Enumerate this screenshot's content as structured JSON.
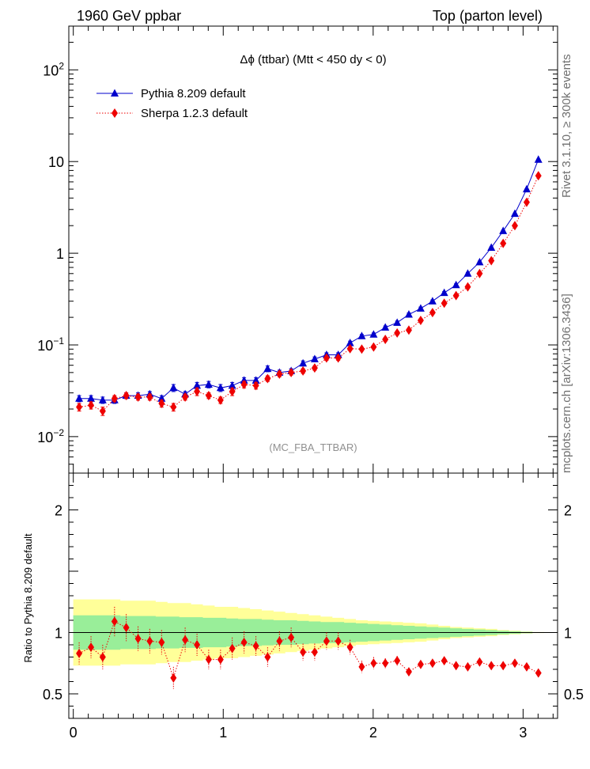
{
  "header": {
    "left": "1960 GeV ppbar",
    "right": "Top (parton level)"
  },
  "side_labels": {
    "rivet": "Rivet 3.1.10, ≥ 300k events",
    "mcplots": "mcplots.cern.ch [arXiv:1306.3436]"
  },
  "chart_data": [
    {
      "type": "scatter",
      "panel": "main",
      "title": "Δϕ (ttbar) (Mtt < 450 dy < 0)",
      "watermark": "(MC_FBA_TTBAR)",
      "yscale": "log",
      "xlim": [
        -0.03,
        3.23
      ],
      "ylim": [
        0.004,
        300
      ],
      "ytick_values": [
        0.01,
        0.1,
        1,
        10,
        100
      ],
      "ytick_labels": [
        "10^-2",
        "10^-1",
        "1",
        "10",
        "10^2"
      ],
      "legend_position": "top-left",
      "x": [
        0.039,
        0.118,
        0.196,
        0.275,
        0.353,
        0.432,
        0.51,
        0.589,
        0.668,
        0.746,
        0.825,
        0.903,
        0.982,
        1.06,
        1.139,
        1.218,
        1.296,
        1.375,
        1.453,
        1.532,
        1.61,
        1.689,
        1.767,
        1.846,
        1.924,
        2.003,
        2.081,
        2.16,
        2.238,
        2.317,
        2.396,
        2.474,
        2.553,
        2.631,
        2.71,
        2.788,
        2.867,
        2.945,
        3.024,
        3.102
      ],
      "series": [
        {
          "name": "Pythia 8.209 default",
          "color": "#0000cc",
          "marker": "triangle",
          "line": "solid",
          "values": [
            0.026,
            0.026,
            0.025,
            0.025,
            0.028,
            0.028,
            0.029,
            0.026,
            0.034,
            0.029,
            0.036,
            0.037,
            0.034,
            0.036,
            0.041,
            0.041,
            0.055,
            0.05,
            0.052,
            0.063,
            0.07,
            0.078,
            0.078,
            0.105,
            0.125,
            0.13,
            0.155,
            0.175,
            0.215,
            0.25,
            0.3,
            0.37,
            0.45,
            0.6,
            0.8,
            1.15,
            1.75,
            2.7,
            5.0,
            10.5
          ],
          "errors": [
            0.002,
            0.002,
            0.002,
            0.002,
            0.002,
            0.002,
            0.002,
            0.002,
            0.003,
            0.002,
            0.003,
            0.003,
            0.003,
            0.003,
            0.003,
            0.003,
            0.004,
            0.003,
            0.003,
            0.004,
            0.004,
            0.004,
            0.004,
            0.005,
            0.005,
            0.005,
            0.006,
            0.007,
            0.008,
            0.009,
            0.01,
            0.012,
            0.014,
            0.018,
            0.02,
            0.025,
            0.03,
            0.04,
            0.06,
            0.1
          ]
        },
        {
          "name": "Sherpa 1.2.3 default",
          "color": "#ee0000",
          "marker": "diamond",
          "line": "dotted",
          "values": [
            0.021,
            0.022,
            0.019,
            0.026,
            0.028,
            0.027,
            0.027,
            0.023,
            0.021,
            0.027,
            0.031,
            0.028,
            0.025,
            0.031,
            0.037,
            0.036,
            0.043,
            0.048,
            0.05,
            0.052,
            0.056,
            0.072,
            0.072,
            0.091,
            0.09,
            0.095,
            0.115,
            0.135,
            0.145,
            0.185,
            0.225,
            0.285,
            0.345,
            0.43,
            0.6,
            0.83,
            1.28,
            2.0,
            3.6,
            7.0
          ],
          "errors": [
            0.002,
            0.002,
            0.002,
            0.002,
            0.002,
            0.002,
            0.002,
            0.002,
            0.002,
            0.002,
            0.003,
            0.002,
            0.002,
            0.003,
            0.003,
            0.003,
            0.003,
            0.003,
            0.003,
            0.003,
            0.003,
            0.004,
            0.004,
            0.004,
            0.004,
            0.004,
            0.005,
            0.006,
            0.006,
            0.007,
            0.008,
            0.01,
            0.012,
            0.014,
            0.018,
            0.022,
            0.028,
            0.035,
            0.05,
            0.08
          ]
        }
      ]
    },
    {
      "type": "scatter",
      "panel": "ratio",
      "ylabel": "Ratio to Pythia 8.209 default",
      "xlim": [
        -0.03,
        3.23
      ],
      "ylim": [
        0.3,
        2.3
      ],
      "xtick_labels": [
        "0",
        "1",
        "2",
        "3"
      ],
      "ytick_labels": [
        "0.5",
        "1",
        "2"
      ],
      "reference_line": 1,
      "band_inner_halfwidth": [
        0.14,
        0.14,
        0.14,
        0.14,
        0.135,
        0.135,
        0.135,
        0.13,
        0.13,
        0.125,
        0.125,
        0.12,
        0.12,
        0.115,
        0.11,
        0.11,
        0.105,
        0.1,
        0.1,
        0.095,
        0.09,
        0.085,
        0.085,
        0.08,
        0.075,
        0.07,
        0.065,
        0.06,
        0.055,
        0.05,
        0.045,
        0.04,
        0.035,
        0.03,
        0.025,
        0.02,
        0.015,
        0.01,
        0.006,
        0.003
      ],
      "band_outer_halfwidth": [
        0.27,
        0.27,
        0.27,
        0.27,
        0.26,
        0.26,
        0.26,
        0.25,
        0.24,
        0.24,
        0.23,
        0.22,
        0.21,
        0.21,
        0.2,
        0.19,
        0.18,
        0.17,
        0.16,
        0.15,
        0.14,
        0.13,
        0.12,
        0.11,
        0.1,
        0.095,
        0.09,
        0.085,
        0.08,
        0.075,
        0.065,
        0.055,
        0.045,
        0.04,
        0.035,
        0.03,
        0.02,
        0.015,
        0.008,
        0.004
      ],
      "series": [
        {
          "name": "Sherpa 1.2.3 default",
          "color": "#ee0000",
          "marker": "diamond",
          "line": "dotted",
          "values": [
            0.83,
            0.88,
            0.8,
            1.09,
            1.04,
            0.95,
            0.93,
            0.92,
            0.63,
            0.94,
            0.9,
            0.78,
            0.78,
            0.87,
            0.92,
            0.89,
            0.8,
            0.93,
            0.96,
            0.84,
            0.84,
            0.93,
            0.93,
            0.88,
            0.72,
            0.75,
            0.75,
            0.77,
            0.68,
            0.74,
            0.75,
            0.77,
            0.73,
            0.72,
            0.76,
            0.73,
            0.73,
            0.75,
            0.72,
            0.67
          ],
          "errors": [
            0.09,
            0.09,
            0.1,
            0.12,
            0.11,
            0.1,
            0.1,
            0.1,
            0.09,
            0.1,
            0.09,
            0.08,
            0.08,
            0.09,
            0.09,
            0.08,
            0.08,
            0.08,
            0.08,
            0.07,
            0.07,
            0.07,
            0.07,
            0.06,
            0.05,
            0.05,
            0.04,
            0.04,
            0.03,
            0.03,
            0.03,
            0.02,
            0.02,
            0.02,
            0.02,
            0.015,
            0.015,
            0.015,
            0.015,
            0.015
          ]
        }
      ]
    }
  ]
}
